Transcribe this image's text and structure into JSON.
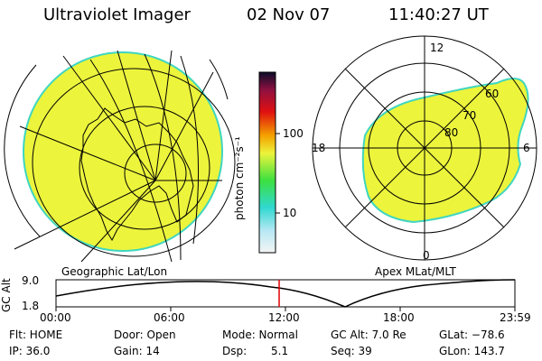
{
  "header": {
    "instrument": "Ultraviolet Imager",
    "date": "02 Nov 07",
    "time": "11:40:27 UT"
  },
  "geo_panel": {
    "label": "Geographic Lat/Lon"
  },
  "apex_panel": {
    "label": "Apex MLat/MLT",
    "mlt_labels": {
      "top": "12",
      "left": "18",
      "right": "6",
      "bottom": "0"
    },
    "lat_labels": [
      "60",
      "70",
      "80"
    ]
  },
  "colorbar": {
    "unit_label": "photon cm⁻²s⁻¹",
    "tick_labels": [
      "100",
      "10"
    ]
  },
  "altitude_plot": {
    "ylabel": "GC Alt",
    "ymax_label": "9.0",
    "ymin_label": "1.8",
    "time_labels": [
      "00:00",
      "06:00",
      "12:00",
      "18:00",
      "23:59"
    ],
    "current_time_hours": 11.67
  },
  "status": {
    "flt": "Flt: HOME",
    "ip": "IP: 36.0",
    "door": "Door: Open",
    "gain": "Gain: 14",
    "mode": "Mode: Normal",
    "dsp": "Dsp:",
    "dsp_value": "5.1",
    "gc_alt": "GC Alt: 7.0 Re",
    "seq": "Seq: 39",
    "glat": "GLat: −78.6",
    "glon": "GLon: 143.7"
  },
  "colors": {
    "aurora_fill": "#ecf43c",
    "aurora_edge": "#3fd6c0",
    "current_time_marker": "#e00000"
  }
}
